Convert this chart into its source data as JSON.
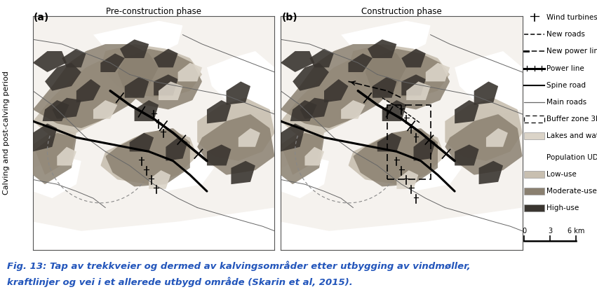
{
  "title_a": "Pre-construction phase",
  "title_b": "Construction phase",
  "label_a": "(a)",
  "label_b": "(b)",
  "ylabel": "Calving and post-calving period",
  "caption_line1": "Fig. 13: Tap av trekkveier og dermed av kalvingsområder etter utbygging av vindmøller,",
  "caption_line2": "kraftlinjer og vei i et allerede utbygd område (Skarin et al, 2015).",
  "caption_color": "#2255bb",
  "bg_color": "#ffffff",
  "color_low": "#c8bfb0",
  "color_mod": "#8a8070",
  "color_high": "#3a3530",
  "color_lake": "#dbd4c8",
  "color_white": "#ffffff",
  "map_base": "#f5f2ee",
  "leg_fs": 7.5,
  "cap_fs": 9.5
}
